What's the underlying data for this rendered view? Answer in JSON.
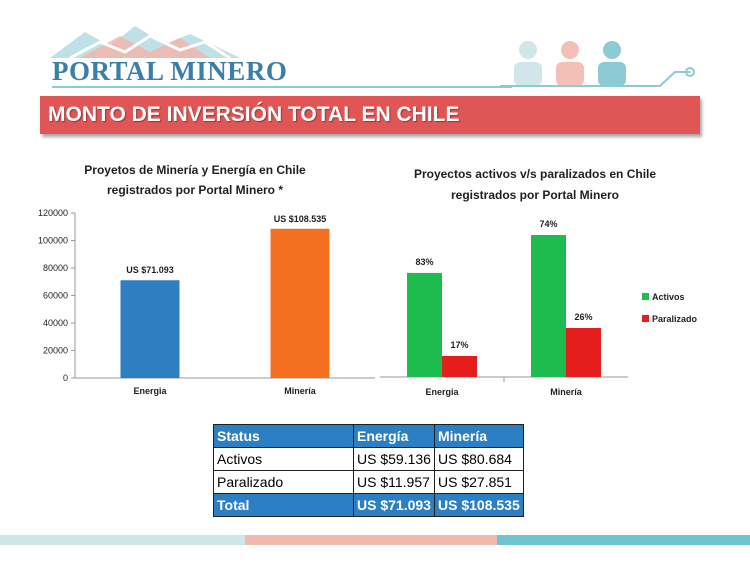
{
  "header": {
    "logo_text": "PORTAL MINERO",
    "title": "MONTO DE INVERSIÓN TOTAL EN CHILE"
  },
  "colors": {
    "title_bar": "#e05555",
    "energia_bar": "#2e7ec2",
    "mineria_bar": "#f37021",
    "activos": "#1ebc4e",
    "paralizado": "#e41d1d",
    "table_header": "#2d7fc4",
    "footer": [
      "#cde6e6",
      "#f2b7ad",
      "#6cc4d0"
    ]
  },
  "chart_data": [
    {
      "type": "bar",
      "title_lines": [
        "Proyetos de Minería y Energía en Chile",
        "registrados por Portal Minero *"
      ],
      "categories": [
        "Energia",
        "Minería"
      ],
      "values": [
        71093,
        108535
      ],
      "data_labels": [
        "US $71.093",
        "US $108.535"
      ],
      "ylim": [
        0,
        120000
      ],
      "yticks": [
        0,
        20000,
        40000,
        60000,
        80000,
        100000,
        120000
      ],
      "grid": false,
      "legend": "none"
    },
    {
      "type": "bar",
      "title_lines": [
        "Proyectos activos v/s paralizados  en Chile",
        "registrados por Portal Minero"
      ],
      "categories": [
        "Energia",
        "Minería"
      ],
      "series": [
        {
          "name": "Activos",
          "values": [
            59136,
            80684
          ],
          "labels": [
            "83%",
            "74%"
          ]
        },
        {
          "name": "Paralizado",
          "values": [
            11957,
            27851
          ],
          "labels": [
            "17%",
            "26%"
          ]
        }
      ],
      "legend": "right"
    }
  ],
  "table": {
    "headers": [
      "Status",
      "Energía",
      "Minería"
    ],
    "rows": [
      [
        "Activos",
        "US $59.136",
        "US $80.684"
      ],
      [
        "Paralizado",
        "US $11.957",
        "US $27.851"
      ]
    ],
    "total": [
      "Total",
      "US $71.093",
      "US $108.535"
    ]
  }
}
